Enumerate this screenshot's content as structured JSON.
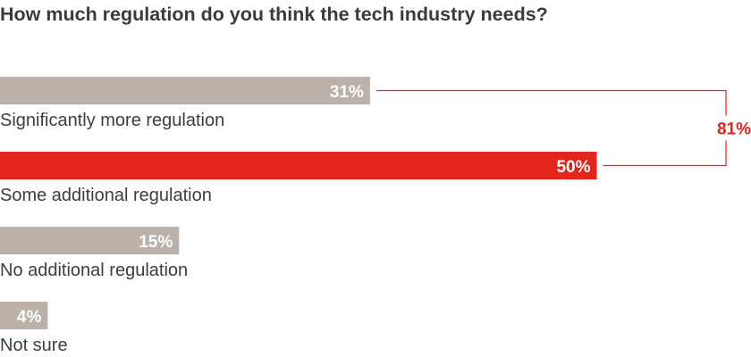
{
  "chart_data": {
    "type": "bar",
    "orientation": "horizontal",
    "title": "How much regulation do you think the tech industry needs?",
    "categories": [
      "Significantly more regulation",
      "Some additional regulation",
      "No additional regulation",
      "Not sure"
    ],
    "values": [
      31,
      50,
      15,
      4
    ],
    "value_labels": [
      "31%",
      "50%",
      "15%",
      "4%"
    ],
    "unit": "%",
    "xlim": [
      0,
      100
    ],
    "grid": false,
    "legend": "none",
    "highlight_index": 1,
    "bracket": {
      "spans": [
        0,
        1
      ],
      "label": "81%"
    },
    "colors": {
      "default_bar": "#bbb1a8",
      "highlight_bar": "#e2261b",
      "bracket": "#e2261b",
      "label_text": "#3d3d3d",
      "value_text": "#ffffff"
    }
  }
}
